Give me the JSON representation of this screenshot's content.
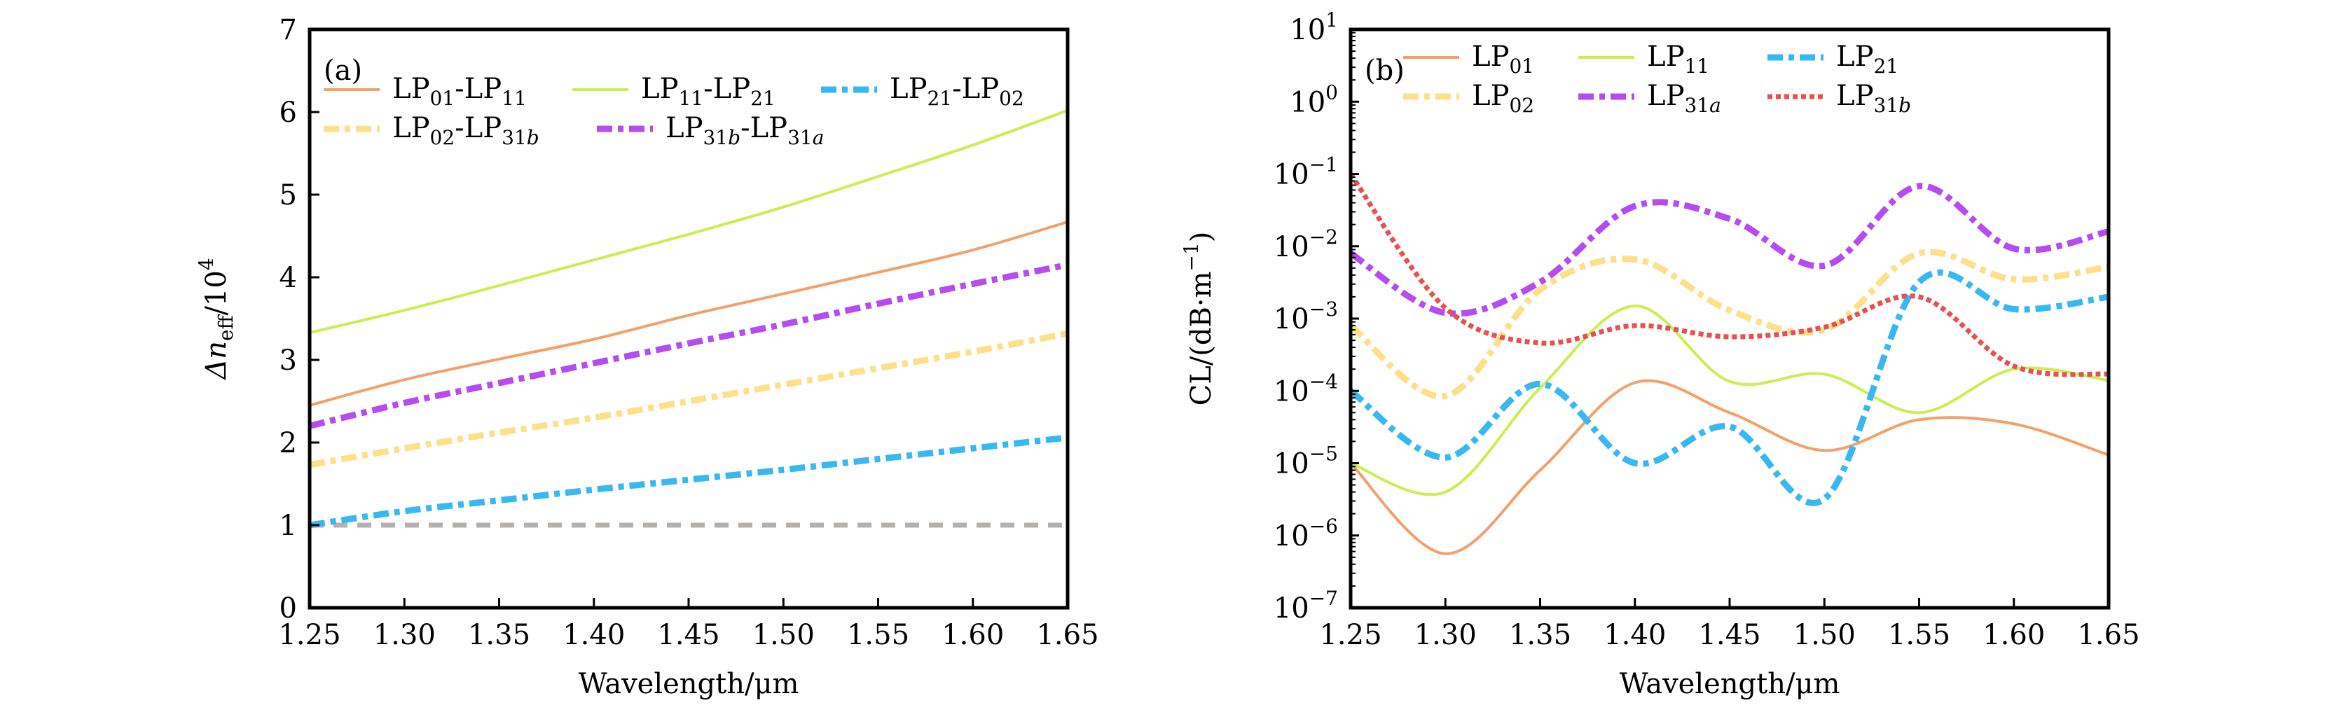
{
  "chart_data": [
    {
      "panel": "(a)",
      "type": "line",
      "xlabel": "Wavelength/μm",
      "ylabel": "Δn_eff/10^4",
      "ylabel_parts": {
        "main": "Δn",
        "sub": "eff",
        "tail": "/10",
        "sup": "4"
      },
      "xlim": [
        1.25,
        1.65
      ],
      "ylim": [
        0,
        7
      ],
      "x_ticks": [
        "1.25",
        "1.30",
        "1.35",
        "1.40",
        "1.45",
        "1.50",
        "1.55",
        "1.60",
        "1.65"
      ],
      "y_ticks": [
        "0",
        "1",
        "2",
        "3",
        "4",
        "5",
        "6",
        "7"
      ],
      "grid": false,
      "legend_position": "top-left",
      "x": [
        1.25,
        1.3,
        1.35,
        1.4,
        1.45,
        1.5,
        1.55,
        1.6,
        1.65
      ],
      "series": [
        {
          "name": "LP01-LP11",
          "label_parts": [
            [
              "LP",
              "01"
            ],
            [
              "-LP",
              "11"
            ]
          ],
          "color": "#f4a06a",
          "style": "solid",
          "values": [
            2.45,
            2.76,
            3.01,
            3.25,
            3.54,
            3.8,
            4.06,
            4.33,
            4.67
          ]
        },
        {
          "name": "LP11-LP21",
          "label_parts": [
            [
              "LP",
              "11"
            ],
            [
              "-LP",
              "21"
            ]
          ],
          "color": "#c8f050",
          "style": "solid",
          "values": [
            3.33,
            3.6,
            3.9,
            4.21,
            4.52,
            4.85,
            5.22,
            5.6,
            6.02
          ]
        },
        {
          "name": "LP21-LP02",
          "label_parts": [
            [
              "LP",
              "21"
            ],
            [
              "-LP",
              "02"
            ]
          ],
          "color": "#38b8f0",
          "style": "dashdot",
          "values": [
            1.0,
            1.17,
            1.3,
            1.43,
            1.55,
            1.67,
            1.8,
            1.93,
            2.06
          ]
        },
        {
          "name": "LP02-LP31b",
          "label_parts": [
            [
              "LP",
              "02"
            ],
            [
              "-LP",
              "31b"
            ]
          ],
          "color": "#fde08a",
          "style": "dashdot",
          "values": [
            1.73,
            1.93,
            2.12,
            2.3,
            2.5,
            2.7,
            2.9,
            3.1,
            3.32
          ]
        },
        {
          "name": "LP31b-LP31a",
          "label_parts": [
            [
              "LP",
              "31b"
            ],
            [
              "-LP",
              "31a"
            ]
          ],
          "color": "#b44cf0",
          "style": "dashdot",
          "values": [
            2.2,
            2.48,
            2.72,
            2.96,
            3.2,
            3.43,
            3.68,
            3.92,
            4.15
          ]
        }
      ],
      "reference_line": {
        "value": 1,
        "color": "#b4b0ae",
        "style": "dashed"
      }
    },
    {
      "panel": "(b)",
      "type": "line",
      "xlabel": "Wavelength/μm",
      "ylabel": "CL/(dB·m^-1)",
      "ylabel_parts": {
        "main": "CL/(dB·m",
        "sup": "−1",
        "tail": ")"
      },
      "yscale": "log",
      "xlim": [
        1.25,
        1.65
      ],
      "ylim": [
        1e-07,
        10
      ],
      "x_ticks": [
        "1.25",
        "1.30",
        "1.35",
        "1.40",
        "1.45",
        "1.50",
        "1.55",
        "1.60",
        "1.65"
      ],
      "y_ticks": [
        {
          "base": "10",
          "exp": "1"
        },
        {
          "base": "10",
          "exp": "0"
        },
        {
          "base": "10",
          "exp": "−1"
        },
        {
          "base": "10",
          "exp": "−2"
        },
        {
          "base": "10",
          "exp": "−3"
        },
        {
          "base": "10",
          "exp": "−4"
        },
        {
          "base": "10",
          "exp": "−5"
        },
        {
          "base": "10",
          "exp": "−6"
        },
        {
          "base": "10",
          "exp": "−7"
        }
      ],
      "grid": false,
      "legend_position": "top-left",
      "x": [
        1.25,
        1.3,
        1.35,
        1.4,
        1.45,
        1.5,
        1.55,
        1.6,
        1.65
      ],
      "series": [
        {
          "name": "LP01",
          "label_parts": [
            [
              "LP",
              "01"
            ]
          ],
          "color": "#f4a06a",
          "style": "solid",
          "values": [
            1e-05,
            5.6e-07,
            8e-06,
            0.00013,
            5e-05,
            1.5e-05,
            4e-05,
            3.5e-05,
            1.3e-05
          ]
        },
        {
          "name": "LP11",
          "label_parts": [
            [
              "LP",
              "11"
            ]
          ],
          "color": "#c8f050",
          "style": "solid",
          "values": [
            1e-05,
            4e-06,
            0.00011,
            0.0015,
            0.000135,
            0.00017,
            5e-05,
            0.0002,
            0.00014
          ]
        },
        {
          "name": "LP21",
          "label_parts": [
            [
              "LP",
              "21"
            ]
          ],
          "color": "#38b8f0",
          "style": "dashdot",
          "values": [
            0.0001,
            1.2e-05,
            0.000125,
            1e-05,
            3.2e-05,
            3.2e-06,
            0.0032,
            0.00135,
            0.002
          ]
        },
        {
          "name": "LP02",
          "label_parts": [
            [
              "LP",
              "02"
            ]
          ],
          "color": "#fde08a",
          "style": "dashdot",
          "values": [
            0.0008,
            8.5e-05,
            0.0025,
            0.0066,
            0.0013,
            0.0007,
            0.008,
            0.0035,
            0.0052
          ]
        },
        {
          "name": "LP31a",
          "label_parts": [
            [
              "LP",
              "31a"
            ]
          ],
          "color": "#b44cf0",
          "style": "dashdot",
          "values": [
            0.008,
            0.0012,
            0.0032,
            0.036,
            0.024,
            0.0054,
            0.068,
            0.0093,
            0.016
          ]
        },
        {
          "name": "LP31b",
          "label_parts": [
            [
              "LP",
              "31b"
            ]
          ],
          "color": "#e85050",
          "style": "dotted",
          "values": [
            0.1,
            0.0014,
            0.00046,
            0.0008,
            0.00056,
            0.00076,
            0.002,
            0.00022,
            0.00017
          ]
        }
      ]
    }
  ]
}
